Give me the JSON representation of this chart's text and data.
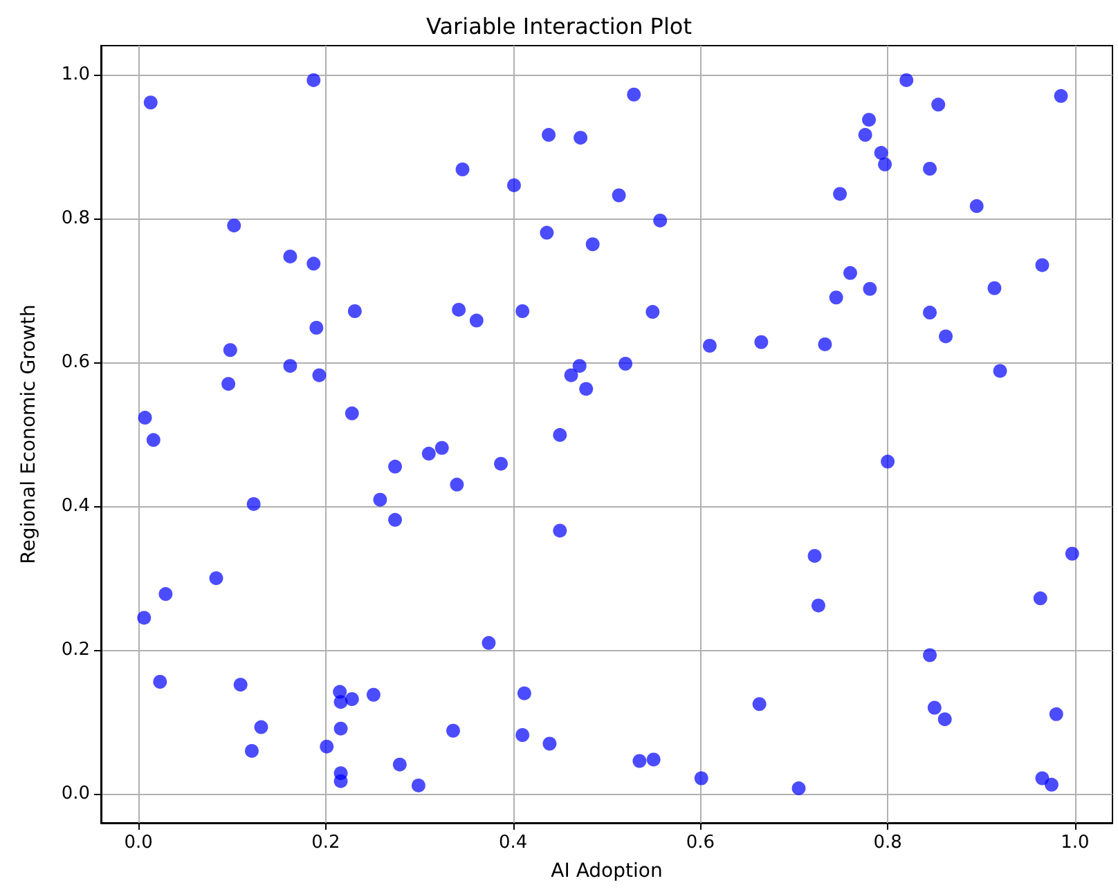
{
  "chart_data": {
    "type": "scatter",
    "title": "Variable Interaction Plot",
    "xlabel": "AI Adoption",
    "ylabel": "Regional Economic Growth",
    "x": [
      0.013,
      0.007,
      0.016,
      0.006,
      0.029,
      0.023,
      0.102,
      0.098,
      0.096,
      0.123,
      0.083,
      0.109,
      0.131,
      0.121,
      0.187,
      0.162,
      0.187,
      0.19,
      0.162,
      0.193,
      0.231,
      0.228,
      0.274,
      0.258,
      0.274,
      0.201,
      0.215,
      0.216,
      0.228,
      0.251,
      0.216,
      0.216,
      0.216,
      0.279,
      0.299,
      0.346,
      0.342,
      0.361,
      0.31,
      0.324,
      0.34,
      0.387,
      0.374,
      0.336,
      0.401,
      0.41,
      0.412,
      0.41,
      0.439,
      0.438,
      0.472,
      0.529,
      0.436,
      0.485,
      0.513,
      0.557,
      0.549,
      0.471,
      0.462,
      0.52,
      0.478,
      0.45,
      0.45,
      0.535,
      0.55,
      0.61,
      0.665,
      0.663,
      0.601,
      0.705,
      0.722,
      0.726,
      0.733,
      0.745,
      0.76,
      0.749,
      0.781,
      0.776,
      0.78,
      0.793,
      0.797,
      0.82,
      0.854,
      0.845,
      0.895,
      0.845,
      0.862,
      0.914,
      0.92,
      0.8,
      0.845,
      0.85,
      0.861,
      0.965,
      0.985,
      0.963,
      0.997,
      0.98,
      0.965,
      0.975
    ],
    "values": [
      0.961,
      0.523,
      0.492,
      0.245,
      0.278,
      0.156,
      0.79,
      0.617,
      0.57,
      0.403,
      0.3,
      0.152,
      0.093,
      0.06,
      0.992,
      0.747,
      0.737,
      0.648,
      0.595,
      0.582,
      0.671,
      0.529,
      0.455,
      0.409,
      0.381,
      0.066,
      0.142,
      0.128,
      0.132,
      0.138,
      0.091,
      0.029,
      0.018,
      0.041,
      0.012,
      0.868,
      0.673,
      0.658,
      0.473,
      0.481,
      0.43,
      0.459,
      0.21,
      0.088,
      0.846,
      0.671,
      0.14,
      0.082,
      0.07,
      0.916,
      0.912,
      0.972,
      0.78,
      0.764,
      0.832,
      0.797,
      0.67,
      0.595,
      0.582,
      0.598,
      0.563,
      0.499,
      0.366,
      0.046,
      0.048,
      0.623,
      0.628,
      0.125,
      0.022,
      0.008,
      0.331,
      0.262,
      0.625,
      0.69,
      0.724,
      0.834,
      0.702,
      0.916,
      0.937,
      0.891,
      0.875,
      0.992,
      0.958,
      0.869,
      0.817,
      0.669,
      0.636,
      0.703,
      0.588,
      0.462,
      0.193,
      0.12,
      0.104,
      0.735,
      0.97,
      0.272,
      0.334,
      0.111,
      0.022,
      0.013
    ],
    "color": "#0000ff",
    "marker": "circle",
    "grid": true,
    "xlim": [
      -0.04,
      1.04
    ],
    "xticks": [
      {
        "value": 0,
        "label": "0.0"
      },
      0.2,
      0.4,
      0.6,
      0.8,
      {
        "value": 1,
        "label": "1.0"
      }
    ],
    "ylim": [
      -0.04,
      1.04
    ],
    "yticks": [
      {
        "value": 0,
        "label": "0.0"
      },
      0.2,
      0.4,
      0.6,
      0.8,
      {
        "value": 1,
        "label": "1.0"
      }
    ]
  }
}
